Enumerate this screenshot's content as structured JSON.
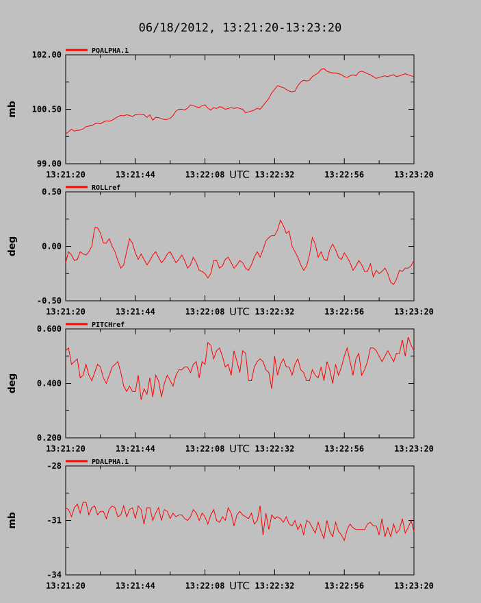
{
  "title": "06/18/2012, 13:21:20-13:23:20",
  "colors": {
    "background": "#c0c0c0",
    "series": "#ff0000",
    "axes": "#000000"
  },
  "chart_data": [
    {
      "type": "line",
      "title": "",
      "legend": "PQALPHA.1",
      "ylabel": "mb",
      "xlabel": "UTC",
      "ylim": [
        99.0,
        102.0
      ],
      "yticks": [
        "99.00",
        "100.50",
        "102.00"
      ],
      "xticks": [
        "13:21:20",
        "13:21:44",
        "13:22:08",
        "13:22:32",
        "13:22:56",
        "13:23:20"
      ],
      "x": [
        0,
        1,
        2,
        3,
        4,
        5,
        6,
        7,
        8,
        9,
        10,
        11,
        12,
        13,
        14,
        15,
        16,
        17,
        18,
        19,
        20,
        21,
        22,
        23,
        24,
        25,
        26,
        27,
        28,
        29,
        30,
        31,
        32,
        33,
        34,
        35,
        36,
        37,
        38,
        39,
        40,
        41,
        42,
        43,
        44,
        45,
        46,
        47,
        48,
        49,
        50,
        51,
        52,
        53,
        54,
        55,
        56,
        57,
        58,
        59,
        60,
        61,
        62,
        63,
        64,
        65,
        66,
        67,
        68,
        69,
        70,
        71,
        72,
        73,
        74,
        75,
        76,
        77,
        78,
        79,
        80,
        81,
        82,
        83,
        84,
        85,
        86,
        87,
        88,
        89,
        90,
        91,
        92,
        93,
        94,
        95,
        96,
        97,
        98,
        99,
        100,
        101,
        102,
        103,
        104,
        105,
        106,
        107,
        108,
        109,
        110,
        111,
        112,
        113,
        114,
        115,
        116,
        117,
        118,
        119,
        120
      ],
      "values": [
        99.82,
        99.88,
        99.95,
        99.9,
        99.92,
        99.93,
        99.96,
        100.02,
        100.04,
        100.05,
        100.1,
        100.12,
        100.1,
        100.15,
        100.18,
        100.17,
        100.2,
        100.25,
        100.3,
        100.33,
        100.32,
        100.35,
        100.33,
        100.3,
        100.35,
        100.36,
        100.36,
        100.35,
        100.28,
        100.35,
        100.2,
        100.28,
        100.27,
        100.24,
        100.22,
        100.22,
        100.25,
        100.33,
        100.45,
        100.5,
        100.5,
        100.48,
        100.53,
        100.62,
        100.6,
        100.57,
        100.55,
        100.6,
        100.62,
        100.53,
        100.48,
        100.55,
        100.52,
        100.57,
        100.55,
        100.5,
        100.52,
        100.55,
        100.52,
        100.55,
        100.52,
        100.5,
        100.4,
        100.43,
        100.45,
        100.48,
        100.53,
        100.5,
        100.6,
        100.7,
        100.8,
        100.95,
        101.05,
        101.15,
        101.12,
        101.1,
        101.05,
        101.0,
        100.98,
        101.0,
        101.15,
        101.25,
        101.3,
        101.28,
        101.3,
        101.4,
        101.45,
        101.5,
        101.6,
        101.62,
        101.55,
        101.52,
        101.5,
        101.5,
        101.48,
        101.45,
        101.4,
        101.38,
        101.42,
        101.45,
        101.42,
        101.52,
        101.55,
        101.52,
        101.48,
        101.45,
        101.4,
        101.35,
        101.38,
        101.4,
        101.42,
        101.4,
        101.43,
        101.45,
        101.4,
        101.42,
        101.45,
        101.48,
        101.45,
        101.42,
        101.4
      ]
    },
    {
      "type": "line",
      "title": "",
      "legend": "ROLLref",
      "ylabel": "deg",
      "xlabel": "UTC",
      "ylim": [
        -0.5,
        0.5
      ],
      "yticks": [
        "-0.50",
        "0.00",
        "0.50"
      ],
      "xticks": [
        "13:21:20",
        "13:21:44",
        "13:22:08",
        "13:22:32",
        "13:22:56",
        "13:23:20"
      ],
      "x": [
        0,
        1,
        2,
        3,
        4,
        5,
        6,
        7,
        8,
        9,
        10,
        11,
        12,
        13,
        14,
        15,
        16,
        17,
        18,
        19,
        20,
        21,
        22,
        23,
        24,
        25,
        26,
        27,
        28,
        29,
        30,
        31,
        32,
        33,
        34,
        35,
        36,
        37,
        38,
        39,
        40,
        41,
        42,
        43,
        44,
        45,
        46,
        47,
        48,
        49,
        50,
        51,
        52,
        53,
        54,
        55,
        56,
        57,
        58,
        59,
        60,
        61,
        62,
        63,
        64,
        65,
        66,
        67,
        68,
        69,
        70,
        71,
        72,
        73,
        74,
        75,
        76,
        77,
        78,
        79,
        80,
        81,
        82,
        83,
        84,
        85,
        86,
        87,
        88,
        89,
        90,
        91,
        92,
        93,
        94,
        95,
        96,
        97,
        98,
        99,
        100,
        101,
        102,
        103,
        104,
        105,
        106,
        107,
        108,
        109,
        110,
        111,
        112,
        113,
        114,
        115,
        116,
        117,
        118,
        119,
        120
      ],
      "values": [
        -0.15,
        -0.05,
        -0.08,
        -0.13,
        -0.12,
        -0.05,
        -0.07,
        -0.08,
        -0.05,
        0.0,
        0.17,
        0.17,
        0.12,
        0.03,
        0.03,
        0.07,
        0.0,
        -0.05,
        -0.13,
        -0.2,
        -0.17,
        -0.05,
        0.07,
        0.03,
        -0.06,
        -0.12,
        -0.07,
        -0.12,
        -0.17,
        -0.13,
        -0.08,
        -0.05,
        -0.1,
        -0.15,
        -0.12,
        -0.07,
        -0.05,
        -0.1,
        -0.15,
        -0.12,
        -0.08,
        -0.13,
        -0.2,
        -0.17,
        -0.1,
        -0.15,
        -0.22,
        -0.23,
        -0.25,
        -0.29,
        -0.25,
        -0.13,
        -0.13,
        -0.2,
        -0.18,
        -0.12,
        -0.1,
        -0.15,
        -0.2,
        -0.17,
        -0.13,
        -0.15,
        -0.2,
        -0.22,
        -0.17,
        -0.1,
        -0.05,
        -0.1,
        -0.03,
        0.05,
        0.08,
        0.1,
        0.1,
        0.15,
        0.24,
        0.19,
        0.12,
        0.14,
        0.0,
        -0.05,
        -0.1,
        -0.17,
        -0.22,
        -0.18,
        -0.08,
        0.08,
        0.02,
        -0.1,
        -0.05,
        -0.12,
        -0.13,
        -0.03,
        0.02,
        -0.03,
        -0.1,
        -0.12,
        -0.06,
        -0.1,
        -0.15,
        -0.22,
        -0.18,
        -0.13,
        -0.17,
        -0.23,
        -0.23,
        -0.16,
        -0.28,
        -0.22,
        -0.25,
        -0.23,
        -0.2,
        -0.25,
        -0.33,
        -0.35,
        -0.3,
        -0.22,
        -0.23,
        -0.2,
        -0.2,
        -0.18,
        -0.13
      ]
    },
    {
      "type": "line",
      "title": "",
      "legend": "PITCHref",
      "ylabel": "deg",
      "xlabel": "UTC",
      "ylim": [
        0.2,
        0.6
      ],
      "yticks": [
        "0.200",
        "0.400",
        "0.600"
      ],
      "xticks": [
        "13:21:20",
        "13:21:44",
        "13:22:08",
        "13:22:32",
        "13:22:56",
        "13:23:20"
      ],
      "x": [
        0,
        1,
        2,
        3,
        4,
        5,
        6,
        7,
        8,
        9,
        10,
        11,
        12,
        13,
        14,
        15,
        16,
        17,
        18,
        19,
        20,
        21,
        22,
        23,
        24,
        25,
        26,
        27,
        28,
        29,
        30,
        31,
        32,
        33,
        34,
        35,
        36,
        37,
        38,
        39,
        40,
        41,
        42,
        43,
        44,
        45,
        46,
        47,
        48,
        49,
        50,
        51,
        52,
        53,
        54,
        55,
        56,
        57,
        58,
        59,
        60,
        61,
        62,
        63,
        64,
        65,
        66,
        67,
        68,
        69,
        70,
        71,
        72,
        73,
        74,
        75,
        76,
        77,
        78,
        79,
        80,
        81,
        82,
        83,
        84,
        85,
        86,
        87,
        88,
        89,
        90,
        91,
        92,
        93,
        94,
        95,
        96,
        97,
        98,
        99,
        100,
        101,
        102,
        103,
        104,
        105,
        106,
        107,
        108,
        109,
        110,
        111,
        112,
        113,
        114,
        115,
        116,
        117,
        118,
        119,
        120
      ],
      "values": [
        0.52,
        0.53,
        0.47,
        0.48,
        0.49,
        0.42,
        0.43,
        0.47,
        0.43,
        0.41,
        0.44,
        0.47,
        0.46,
        0.42,
        0.4,
        0.43,
        0.46,
        0.47,
        0.48,
        0.44,
        0.39,
        0.37,
        0.39,
        0.37,
        0.37,
        0.43,
        0.34,
        0.38,
        0.36,
        0.42,
        0.35,
        0.43,
        0.41,
        0.35,
        0.4,
        0.43,
        0.41,
        0.39,
        0.43,
        0.45,
        0.45,
        0.46,
        0.46,
        0.44,
        0.47,
        0.48,
        0.42,
        0.48,
        0.47,
        0.55,
        0.54,
        0.49,
        0.52,
        0.53,
        0.5,
        0.46,
        0.47,
        0.43,
        0.52,
        0.48,
        0.44,
        0.52,
        0.51,
        0.41,
        0.41,
        0.46,
        0.48,
        0.49,
        0.48,
        0.45,
        0.44,
        0.38,
        0.5,
        0.43,
        0.47,
        0.49,
        0.46,
        0.46,
        0.43,
        0.47,
        0.49,
        0.45,
        0.44,
        0.41,
        0.41,
        0.45,
        0.43,
        0.42,
        0.46,
        0.41,
        0.48,
        0.45,
        0.4,
        0.47,
        0.43,
        0.46,
        0.5,
        0.53,
        0.48,
        0.43,
        0.49,
        0.51,
        0.43,
        0.45,
        0.48,
        0.53,
        0.53,
        0.52,
        0.5,
        0.48,
        0.5,
        0.52,
        0.5,
        0.48,
        0.51,
        0.51,
        0.56,
        0.5,
        0.57,
        0.54,
        0.52
      ]
    },
    {
      "type": "line",
      "title": "",
      "legend": "PDALPHA.1",
      "ylabel": "mb",
      "xlabel": "UTC",
      "ylim": [
        -34,
        -28
      ],
      "yticks": [
        "-34",
        "-31",
        "-28"
      ],
      "xticks": [
        "13:21:20",
        "13:21:44",
        "13:22:08",
        "13:22:32",
        "13:22:56",
        "13:23:20"
      ],
      "x": [
        0,
        1,
        2,
        3,
        4,
        5,
        6,
        7,
        8,
        9,
        10,
        11,
        12,
        13,
        14,
        15,
        16,
        17,
        18,
        19,
        20,
        21,
        22,
        23,
        24,
        25,
        26,
        27,
        28,
        29,
        30,
        31,
        32,
        33,
        34,
        35,
        36,
        37,
        38,
        39,
        40,
        41,
        42,
        43,
        44,
        45,
        46,
        47,
        48,
        49,
        50,
        51,
        52,
        53,
        54,
        55,
        56,
        57,
        58,
        59,
        60,
        61,
        62,
        63,
        64,
        65,
        66,
        67,
        68,
        69,
        70,
        71,
        72,
        73,
        74,
        75,
        76,
        77,
        78,
        79,
        80,
        81,
        82,
        83,
        84,
        85,
        86,
        87,
        88,
        89,
        90,
        91,
        92,
        93,
        94,
        95,
        96,
        97,
        98,
        99,
        100,
        101,
        102,
        103,
        104,
        105,
        106,
        107,
        108,
        109,
        110,
        111,
        112,
        113,
        114,
        115,
        116,
        117,
        118,
        119,
        120
      ],
      "values": [
        -30.3,
        -30.4,
        -30.8,
        -30.3,
        -30.1,
        -30.6,
        -30.0,
        -30.0,
        -30.7,
        -30.3,
        -30.2,
        -30.7,
        -30.5,
        -30.5,
        -30.9,
        -30.4,
        -30.2,
        -30.3,
        -30.8,
        -30.7,
        -30.2,
        -30.8,
        -30.4,
        -30.3,
        -30.9,
        -30.2,
        -30.4,
        -31.2,
        -30.3,
        -30.3,
        -31.0,
        -30.6,
        -30.3,
        -31.0,
        -30.4,
        -30.5,
        -30.9,
        -30.6,
        -30.8,
        -30.7,
        -30.7,
        -30.9,
        -31.0,
        -30.8,
        -30.4,
        -30.6,
        -31.0,
        -30.6,
        -30.8,
        -31.2,
        -30.7,
        -30.4,
        -31.0,
        -31.1,
        -30.8,
        -31.0,
        -30.3,
        -30.6,
        -31.3,
        -30.7,
        -30.5,
        -30.7,
        -30.8,
        -30.9,
        -30.6,
        -31.2,
        -31.0,
        -30.2,
        -31.8,
        -30.6,
        -31.5,
        -30.7,
        -30.9,
        -30.8,
        -30.9,
        -31.1,
        -30.8,
        -31.2,
        -31.3,
        -31.0,
        -31.5,
        -31.2,
        -31.8,
        -31.0,
        -31.1,
        -31.4,
        -31.7,
        -31.1,
        -31.6,
        -32.0,
        -31.0,
        -31.6,
        -31.9,
        -31.1,
        -31.6,
        -31.8,
        -32.1,
        -31.5,
        -31.2,
        -31.4,
        -31.5,
        -31.5,
        -31.5,
        -31.5,
        -31.2,
        -31.1,
        -31.3,
        -31.3,
        -31.8,
        -30.9,
        -31.9,
        -31.4,
        -31.9,
        -31.2,
        -31.7,
        -31.5,
        -30.9,
        -31.7,
        -31.4,
        -31.0,
        -31.6
      ]
    }
  ]
}
